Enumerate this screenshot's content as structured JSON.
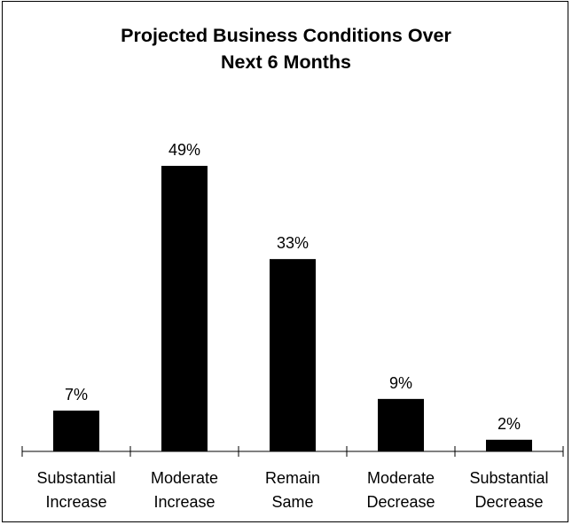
{
  "chart_data": {
    "type": "bar",
    "title_lines": [
      "Projected Business Conditions Over",
      "Next 6 Months"
    ],
    "categories": [
      [
        "Substantial",
        "Increase"
      ],
      [
        "Moderate",
        "Increase"
      ],
      [
        "Remain",
        "Same"
      ],
      [
        "Moderate",
        "Decrease"
      ],
      [
        "Substantial",
        "Decrease"
      ]
    ],
    "values": [
      7,
      49,
      33,
      9,
      2
    ],
    "data_labels": [
      "7%",
      "49%",
      "33%",
      "9%",
      "2%"
    ],
    "ylim": [
      0,
      100
    ],
    "bar_color": "#000000",
    "grid": false,
    "legend": "none"
  }
}
